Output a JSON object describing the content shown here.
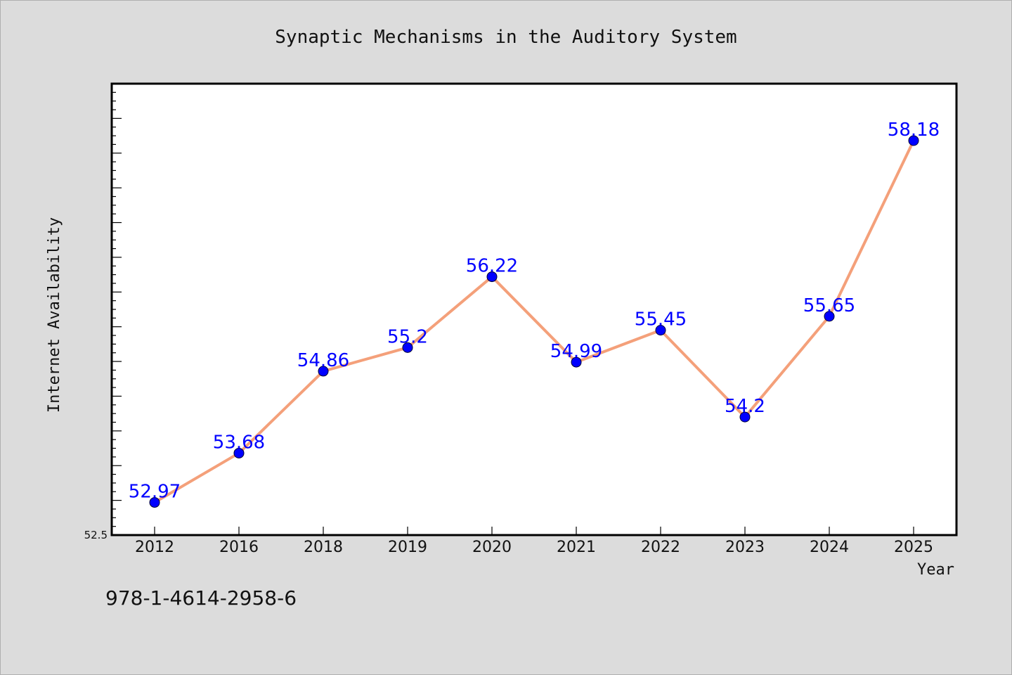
{
  "chart_data": {
    "type": "line",
    "title": "Synaptic Mechanisms in the Auditory System",
    "xlabel": "Year",
    "ylabel": "Internet Availability",
    "categories": [
      "2012",
      "2016",
      "2018",
      "2019",
      "2020",
      "2021",
      "2022",
      "2023",
      "2024",
      "2025"
    ],
    "series": [
      {
        "values": [
          52.97,
          53.68,
          54.86,
          55.2,
          56.22,
          54.99,
          55.45,
          54.2,
          55.65,
          58.18
        ],
        "data_labels": [
          "52.97",
          "53.68",
          "54.86",
          "55.2",
          "56.22",
          "54.99",
          "55.45",
          "54.2",
          "55.65",
          "58.18"
        ]
      }
    ],
    "ylim": [
      52.5,
      59.0
    ],
    "ytick_labels": [
      "52.5"
    ],
    "grid": false,
    "line_color": "#f4a07a",
    "marker_color": "#0000ff",
    "label_color": "#0000ff"
  },
  "footnote": "978-1-4614-2958-6"
}
